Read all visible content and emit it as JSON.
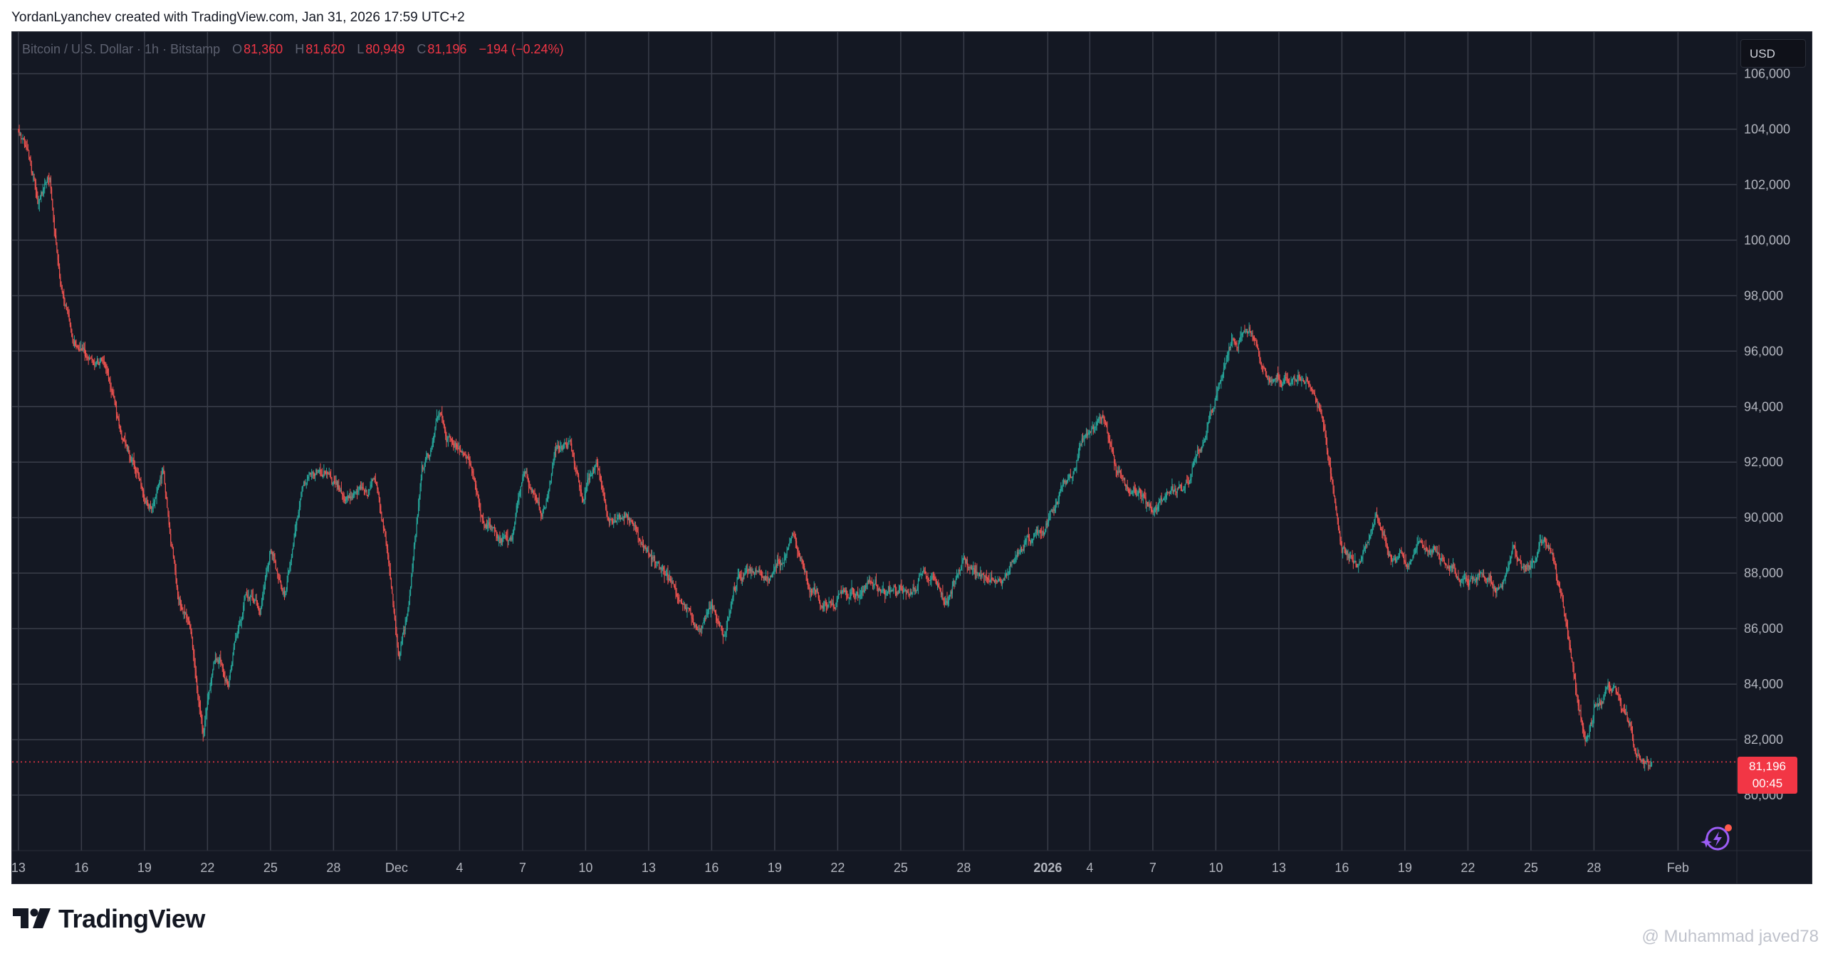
{
  "header": {
    "text": "YordanLyanchev created with TradingView.com, Jan 31, 2026 17:59 UTC+2"
  },
  "legend": {
    "symbol": "Bitcoin / U.S. Dollar · 1h · Bitstamp",
    "o_label": "O",
    "o_value": "81,360",
    "h_label": "H",
    "h_value": "81,620",
    "l_label": "L",
    "l_value": "80,949",
    "c_label": "C",
    "c_value": "81,196",
    "change": "−194 (−0.24%)"
  },
  "currency": "USD",
  "last_price": {
    "value": "81,196",
    "countdown": "00:45"
  },
  "brand": "TradingView",
  "watermark": "@ Muhammad javed78",
  "colors": {
    "background": "#141823",
    "grid": "#3a3e4a",
    "up": "#26a69a",
    "down": "#ef5350",
    "axis_text": "#b2b5be",
    "price_line": "#f23645"
  },
  "chart_data": {
    "type": "candlestick",
    "title": "Bitcoin / U.S. Dollar · 1h · Bitstamp",
    "ylim": [
      78000,
      107500
    ],
    "y_ticks": [
      80000,
      82000,
      84000,
      86000,
      88000,
      90000,
      92000,
      94000,
      96000,
      98000,
      100000,
      102000,
      104000,
      106000
    ],
    "y_tick_labels": [
      "80,000",
      "82,000",
      "84,000",
      "86,000",
      "88,000",
      "90,000",
      "92,000",
      "94,000",
      "96,000",
      "98,000",
      "100,000",
      "102,000",
      "104,000",
      "106,000"
    ],
    "x_ticks": [
      {
        "label": "13",
        "day": 0
      },
      {
        "label": "16",
        "day": 3
      },
      {
        "label": "19",
        "day": 6
      },
      {
        "label": "22",
        "day": 9
      },
      {
        "label": "25",
        "day": 12
      },
      {
        "label": "28",
        "day": 15
      },
      {
        "label": "Dec",
        "day": 18
      },
      {
        "label": "4",
        "day": 21
      },
      {
        "label": "7",
        "day": 24
      },
      {
        "label": "10",
        "day": 27
      },
      {
        "label": "13",
        "day": 30
      },
      {
        "label": "16",
        "day": 33
      },
      {
        "label": "19",
        "day": 36
      },
      {
        "label": "22",
        "day": 39
      },
      {
        "label": "25",
        "day": 42
      },
      {
        "label": "28",
        "day": 45
      },
      {
        "label": "2026",
        "day": 49
      },
      {
        "label": "4",
        "day": 51
      },
      {
        "label": "7",
        "day": 54
      },
      {
        "label": "10",
        "day": 57
      },
      {
        "label": "13",
        "day": 60
      },
      {
        "label": "16",
        "day": 63
      },
      {
        "label": "19",
        "day": 66
      },
      {
        "label": "22",
        "day": 69
      },
      {
        "label": "25",
        "day": 72
      },
      {
        "label": "28",
        "day": 75
      },
      {
        "label": "Feb",
        "day": 79
      }
    ],
    "x_range_days": [
      -0.3,
      81.8
    ],
    "last_day": 77.75,
    "last_close": 81196,
    "path_days": [
      0,
      0.4,
      0.9,
      1.5,
      2.0,
      2.6,
      3.3,
      4.0,
      4.8,
      5.5,
      6.3,
      6.9,
      7.6,
      8.2,
      8.8,
      9.3,
      10.0,
      10.8,
      11.5,
      12.0,
      12.7,
      13.5,
      14.0,
      14.8,
      15.5,
      16.2,
      17.0,
      17.6,
      18.1,
      18.6,
      19.2,
      20.0,
      20.8,
      21.4,
      22.0,
      22.8,
      23.5,
      24.1,
      24.9,
      25.6,
      26.3,
      26.9,
      27.5,
      28.1,
      28.7,
      29.3,
      30.0,
      30.7,
      31.5,
      32.3,
      33.0,
      33.6,
      34.2,
      35.0,
      35.8,
      36.4,
      36.9,
      37.6,
      38.3,
      39.0,
      39.8,
      40.7,
      41.5,
      42.3,
      43.2,
      44.1,
      45.0,
      46.0,
      47.0,
      48.0,
      49.0,
      49.9,
      50.8,
      51.6,
      52.3,
      53.0,
      53.6,
      54.2,
      54.9,
      55.6,
      56.3,
      57.0,
      57.8,
      58.6,
      59.4,
      60.2,
      60.9,
      61.5,
      62.0,
      62.5,
      63.0,
      63.8,
      64.6,
      65.4,
      66.1,
      66.7,
      67.4,
      68.1,
      68.9,
      69.7,
      70.5,
      71.2,
      71.9,
      72.6,
      73.2,
      73.9,
      74.6,
      75.2,
      75.7,
      76.2,
      76.6,
      77.0,
      77.4,
      77.75
    ],
    "path_prices": [
      104000,
      103000,
      101500,
      102500,
      98500,
      96500,
      96000,
      95500,
      93000,
      91500,
      90500,
      91800,
      87500,
      86500,
      82500,
      84800,
      84500,
      87500,
      86500,
      88500,
      87000,
      91000,
      91800,
      91500,
      90600,
      90800,
      91200,
      89000,
      85500,
      86800,
      91500,
      93500,
      92500,
      92000,
      90000,
      89500,
      89700,
      92000,
      90000,
      92200,
      92500,
      90500,
      92000,
      89800,
      90000,
      89500,
      88800,
      88200,
      87300,
      86200,
      87000,
      86000,
      87800,
      88000,
      88000,
      88500,
      89500,
      87500,
      87000,
      87300,
      87600,
      87500,
      87200,
      87500,
      87700,
      87000,
      88500,
      87600,
      88000,
      89500,
      89800,
      91500,
      93000,
      93800,
      92000,
      91000,
      90500,
      90200,
      90800,
      91000,
      92500,
      94500,
      96500,
      96800,
      95500,
      95000,
      95200,
      95000,
      93000,
      91200,
      89000,
      88500,
      89800,
      88500,
      88500,
      89000,
      89200,
      88000,
      87500,
      88000,
      87500,
      89000,
      88200,
      89000,
      88000,
      85000,
      82000,
      83500,
      84000,
      83500,
      82500,
      81500,
      81196,
      81196
    ],
    "vol": 0.0035,
    "seed": 13
  }
}
